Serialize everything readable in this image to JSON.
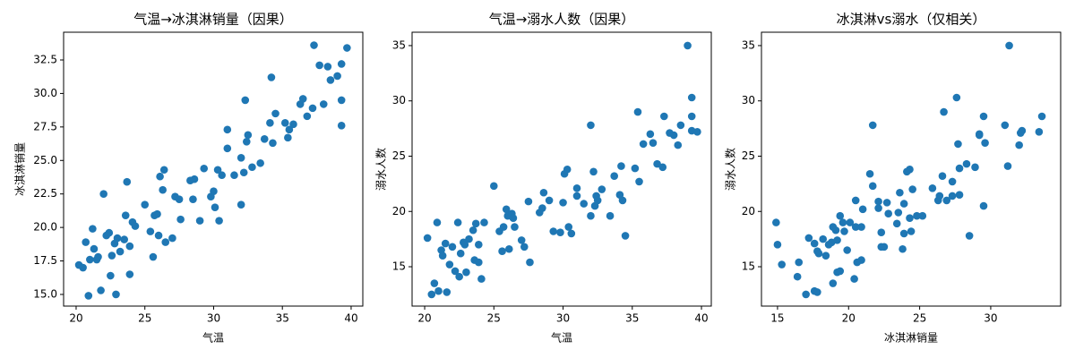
{
  "chart_data": [
    {
      "type": "scatter",
      "title": "气温→冰淇淋销量（因果）",
      "x_label": "气温",
      "y_label": "冰淇淋销量",
      "color": "#1f77b4",
      "xlim": [
        19.09,
        40.85
      ],
      "ylim": [
        14.13,
        34.57
      ],
      "xticks": [
        20,
        25,
        30,
        35,
        40
      ],
      "yticks": [
        {
          "value": 15,
          "label": "15.0"
        },
        17.5,
        {
          "value": 20,
          "label": "20.0"
        },
        22.5,
        {
          "value": 25,
          "label": "25.0"
        },
        27.5,
        {
          "value": 30,
          "label": "30.0"
        },
        32.5
      ],
      "x": [
        20.2,
        20.5,
        20.7,
        20.9,
        21.0,
        21.2,
        21.3,
        21.5,
        21.6,
        21.8,
        22.0,
        22.2,
        22.4,
        22.5,
        22.6,
        22.8,
        22.9,
        23.0,
        23.2,
        23.5,
        23.6,
        23.7,
        23.9,
        23.9,
        24.1,
        24.3,
        25.0,
        25.4,
        25.6,
        25.7,
        25.9,
        26.0,
        26.1,
        26.3,
        26.4,
        26.5,
        27.0,
        27.2,
        27.5,
        27.6,
        28.3,
        28.6,
        28.5,
        29.0,
        29.3,
        29.8,
        30.0,
        30.1,
        30.3,
        30.4,
        30.6,
        31.0,
        31.0,
        31.5,
        32.0,
        32.0,
        32.2,
        32.3,
        32.4,
        32.5,
        32.8,
        33.4,
        33.7,
        34.1,
        34.2,
        34.3,
        34.5,
        35.2,
        35.4,
        35.5,
        35.8,
        36.3,
        36.5,
        36.8,
        37.3,
        37.7,
        38.3,
        38.5,
        39.0,
        39.3,
        39.3,
        39.3,
        39.7,
        38.0,
        37.2
      ],
      "y": [
        17.2,
        17.0,
        18.9,
        14.9,
        17.6,
        19.9,
        18.4,
        17.6,
        17.8,
        15.3,
        22.5,
        19.4,
        19.6,
        16.4,
        17.9,
        18.8,
        15.0,
        19.2,
        18.2,
        19.1,
        20.9,
        23.4,
        16.5,
        18.6,
        20.4,
        20.1,
        21.7,
        19.7,
        17.8,
        20.9,
        21.0,
        19.4,
        23.8,
        22.8,
        24.3,
        18.9,
        19.2,
        22.3,
        22.1,
        20.6,
        23.5,
        23.6,
        22.1,
        20.5,
        24.4,
        22.3,
        22.7,
        21.5,
        24.3,
        20.5,
        23.9,
        27.3,
        25.9,
        23.9,
        25.2,
        21.7,
        24.1,
        29.5,
        26.4,
        26.9,
        24.5,
        24.8,
        26.6,
        27.8,
        31.2,
        26.3,
        28.5,
        27.8,
        26.7,
        27.3,
        27.7,
        29.2,
        29.6,
        28.3,
        33.6,
        32.1,
        32.0,
        31.0,
        31.3,
        29.5,
        32.2,
        27.6,
        33.4,
        29.2,
        28.9
      ]
    },
    {
      "type": "scatter",
      "title": "气温→溺水人数（因果）",
      "x_label": "气温",
      "y_label": "溺水人数",
      "color": "#1f77b4",
      "xlim": [
        19.09,
        40.71
      ],
      "ylim": [
        11.44,
        36.21
      ],
      "xticks": [
        20,
        25,
        30,
        35,
        40
      ],
      "yticks": [
        15,
        20,
        25,
        30,
        35
      ],
      "x": [
        20.2,
        20.5,
        20.7,
        20.9,
        21.0,
        21.2,
        21.3,
        21.5,
        21.6,
        21.8,
        22.0,
        22.2,
        22.4,
        22.5,
        22.6,
        22.8,
        22.9,
        23.0,
        23.2,
        23.5,
        23.6,
        23.7,
        23.9,
        23.9,
        24.1,
        24.3,
        25.0,
        25.4,
        25.6,
        25.7,
        25.9,
        26.0,
        26.1,
        26.3,
        26.4,
        26.5,
        27.0,
        27.2,
        27.5,
        27.6,
        28.3,
        28.6,
        28.5,
        29.0,
        29.3,
        29.8,
        30.0,
        30.1,
        30.3,
        30.4,
        30.6,
        31.0,
        31.0,
        31.5,
        32.0,
        32.0,
        32.2,
        32.3,
        32.4,
        32.5,
        32.8,
        33.4,
        33.7,
        34.1,
        34.2,
        34.3,
        34.5,
        35.2,
        35.4,
        35.5,
        35.8,
        36.3,
        36.5,
        36.8,
        37.3,
        37.7,
        38.3,
        38.5,
        39.0,
        39.3,
        39.3,
        39.3,
        39.7,
        38.0,
        37.2
      ],
      "y": [
        17.6,
        12.5,
        13.5,
        19.0,
        12.8,
        16.5,
        16.0,
        17.1,
        12.7,
        15.2,
        16.8,
        14.6,
        19.0,
        14.1,
        16.2,
        17.2,
        17.0,
        14.5,
        17.5,
        18.3,
        15.6,
        18.9,
        15.4,
        17.0,
        13.9,
        19.0,
        22.3,
        18.2,
        16.4,
        18.6,
        20.2,
        19.6,
        16.6,
        19.8,
        19.4,
        18.6,
        17.4,
        16.8,
        20.9,
        15.4,
        19.9,
        21.7,
        20.3,
        21.0,
        18.2,
        18.1,
        20.8,
        23.4,
        23.8,
        18.6,
        18.0,
        21.4,
        22.1,
        20.7,
        19.6,
        27.8,
        23.6,
        20.5,
        21.4,
        21.0,
        22.0,
        19.6,
        23.2,
        21.5,
        24.1,
        21.0,
        17.8,
        23.9,
        29.0,
        22.7,
        26.1,
        27.0,
        26.2,
        24.3,
        28.6,
        27.1,
        26.0,
        27.8,
        35.0,
        28.6,
        27.3,
        30.3,
        27.2,
        26.9,
        24.0
      ]
    },
    {
      "type": "scatter",
      "title": "冰淇淋vs溺水（仅相关）",
      "x_label": "冰淇淋销量",
      "y_label": "溺水人数",
      "color": "#1f77b4",
      "xlim": [
        13.87,
        34.92
      ],
      "ylim": [
        11.44,
        36.21
      ],
      "xticks": [
        15,
        20,
        25,
        30
      ],
      "yticks": [
        15,
        20,
        25,
        30,
        35
      ],
      "x": [
        17.2,
        17.0,
        18.9,
        14.9,
        17.6,
        19.9,
        18.4,
        17.6,
        17.8,
        15.3,
        22.5,
        19.4,
        19.6,
        16.4,
        17.9,
        18.8,
        15.0,
        19.2,
        18.2,
        19.1,
        20.9,
        23.4,
        16.5,
        18.6,
        20.4,
        20.1,
        21.7,
        19.7,
        17.8,
        20.9,
        21.0,
        19.4,
        23.8,
        22.8,
        24.3,
        18.9,
        19.2,
        22.3,
        22.1,
        20.6,
        23.5,
        23.6,
        22.1,
        20.5,
        24.4,
        22.3,
        22.7,
        21.5,
        24.3,
        20.5,
        23.9,
        27.3,
        25.9,
        23.9,
        25.2,
        21.7,
        24.1,
        29.5,
        26.4,
        26.9,
        24.5,
        24.8,
        26.6,
        27.8,
        31.2,
        26.3,
        28.5,
        27.8,
        26.7,
        27.3,
        27.7,
        29.2,
        29.6,
        28.3,
        33.6,
        32.1,
        32.0,
        31.0,
        31.3,
        29.5,
        32.2,
        27.6,
        33.4,
        29.2,
        28.9
      ],
      "y": [
        17.6,
        12.5,
        13.5,
        19.0,
        12.8,
        16.5,
        16.0,
        17.1,
        12.7,
        15.2,
        16.8,
        14.6,
        19.0,
        14.1,
        16.2,
        17.2,
        17.0,
        14.5,
        17.5,
        18.3,
        15.6,
        18.9,
        15.4,
        17.0,
        13.9,
        19.0,
        22.3,
        18.2,
        16.4,
        18.6,
        20.2,
        19.6,
        16.6,
        19.8,
        19.4,
        18.6,
        17.4,
        16.8,
        20.9,
        15.4,
        19.9,
        21.7,
        20.3,
        21.0,
        18.2,
        18.1,
        20.8,
        23.4,
        23.8,
        18.6,
        18.0,
        21.4,
        22.1,
        20.7,
        19.6,
        27.8,
        23.6,
        20.5,
        21.4,
        21.0,
        22.0,
        19.6,
        23.2,
        21.5,
        24.1,
        21.0,
        17.8,
        23.9,
        29.0,
        22.7,
        26.1,
        27.0,
        26.2,
        24.3,
        28.6,
        27.1,
        26.0,
        27.8,
        35.0,
        28.6,
        27.3,
        30.3,
        27.2,
        26.9,
        24.0
      ]
    }
  ]
}
